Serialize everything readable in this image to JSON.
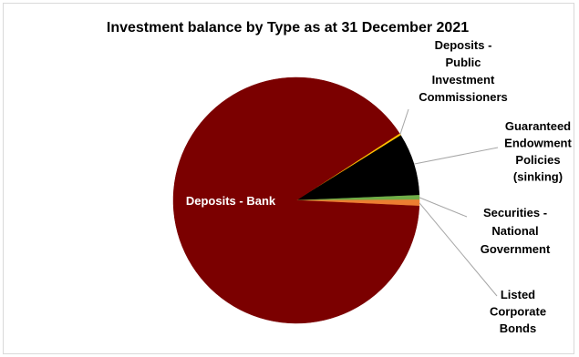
{
  "chart_data": {
    "type": "pie",
    "title": "Investment balance by Type as at 31 December 2021",
    "slices": [
      {
        "label": "Deposits - Public Investment Commissioners",
        "value": 0.3,
        "color": "#ffc000"
      },
      {
        "label": "Guaranteed Endowment Policies (sinking)",
        "value": 8.2,
        "color": "#000000"
      },
      {
        "label": "Securities - National Government",
        "value": 0.6,
        "color": "#70ad47"
      },
      {
        "label": "Listed Corporate Bonds",
        "value": 0.8,
        "color": "#ed7d31"
      },
      {
        "label": "Deposits - Bank",
        "value": 90.1,
        "color": "#7b0000"
      }
    ],
    "label_lines": {
      "Deposits - Public Investment Commissioners": [
        "Deposits -",
        "Public",
        "Investment",
        "Commissioners"
      ],
      "Guaranteed Endowment Policies (sinking)": [
        "Guaranteed",
        "Endowment",
        "Policies",
        "(sinking)"
      ],
      "Securities - National Government": [
        "Securities -",
        "National",
        "Government"
      ],
      "Listed Corporate Bonds": [
        "Listed",
        "Corporate",
        "Bonds"
      ],
      "Deposits - Bank": [
        "Deposits - Bank"
      ]
    },
    "legend": "none"
  }
}
